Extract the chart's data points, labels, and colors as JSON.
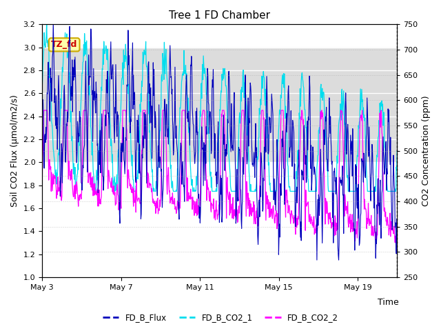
{
  "title": "Tree 1 FD Chamber",
  "xlabel": "Time",
  "ylabel_left": "Soil CO2 Flux (μmol/m2/s)",
  "ylabel_right": "CO2 Concentration (ppm)",
  "ylim_left": [
    1.0,
    3.2
  ],
  "ylim_right": [
    250,
    750
  ],
  "yticks_left": [
    1.0,
    1.2,
    1.4,
    1.6,
    1.8,
    2.0,
    2.2,
    2.4,
    2.6,
    2.8,
    3.0,
    3.2
  ],
  "yticks_right": [
    250,
    300,
    350,
    400,
    450,
    500,
    550,
    600,
    650,
    700,
    750
  ],
  "xtick_positions": [
    0,
    4,
    8,
    12,
    16
  ],
  "xtick_labels": [
    "May 3",
    "May 7",
    "May 11",
    "May 15",
    "May 19"
  ],
  "legend_labels": [
    "FD_B_Flux",
    "FD_B_CO2_1",
    "FD_B_CO2_2"
  ],
  "flux_color": "#0000BB",
  "co2_1_color": "#00DDEE",
  "co2_2_color": "#FF00FF",
  "annotation_text": "TZ_fd",
  "annotation_bg": "#FFFFAA",
  "annotation_border": "#CCAA00",
  "annotation_text_color": "#CC0000",
  "shade_ymin": 2.0,
  "shade_ymax": 3.0,
  "shade_color": "#DCDCDC",
  "background_color": "#FFFFFF",
  "n_days": 18,
  "seed": 42
}
